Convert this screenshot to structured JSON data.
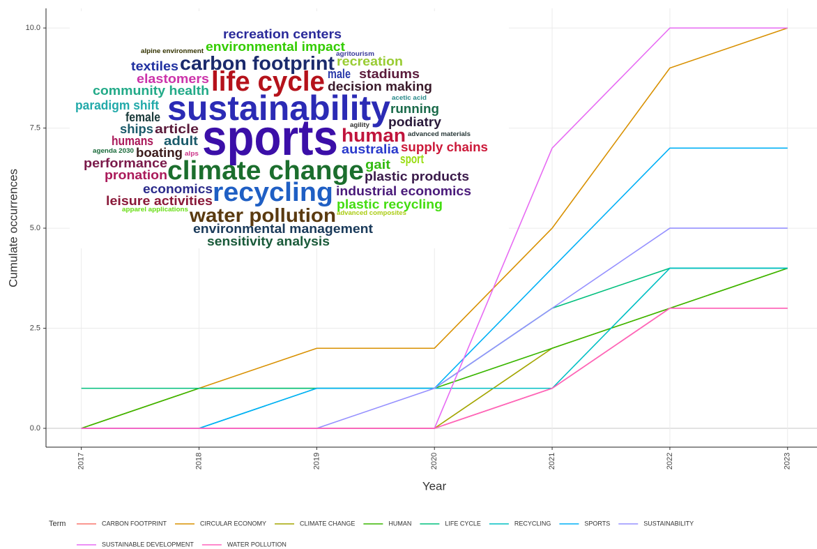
{
  "chart_data": {
    "type": "line",
    "y_label": "Cumulate occurrences",
    "x_label": "Year",
    "legend_title": "Term",
    "legend_position": "bottom",
    "grid": true,
    "x": [
      2017,
      2018,
      2019,
      2020,
      2021,
      2022,
      2023
    ],
    "xlim": [
      2016.7,
      2023.25
    ],
    "xticks": [
      2017,
      2018,
      2019,
      2020,
      2021,
      2022,
      2023
    ],
    "ylim": [
      -0.47,
      10.49
    ],
    "yticks": [
      {
        "value": 0,
        "label": "0.0"
      },
      {
        "value": 2.5,
        "label": "2.5"
      },
      {
        "value": 5,
        "label": "5.0"
      },
      {
        "value": 7.5,
        "label": "7.5"
      },
      {
        "value": 10,
        "label": "10.0"
      }
    ],
    "series": [
      {
        "name": "CARBON FOOTPRINT",
        "color": "#F8766D",
        "values": [
          0,
          0,
          0,
          0,
          1,
          3,
          3
        ]
      },
      {
        "name": "CIRCULAR ECONOMY",
        "color": "#D89000",
        "values": [
          0,
          1,
          2,
          2,
          5,
          9,
          10
        ]
      },
      {
        "name": "CLIMATE CHANGE",
        "color": "#A3A500",
        "values": [
          0,
          0,
          0,
          0,
          2,
          3,
          4
        ]
      },
      {
        "name": "HUMAN",
        "color": "#39B600",
        "values": [
          0,
          1,
          1,
          1,
          2,
          3,
          4
        ]
      },
      {
        "name": "LIFE CYCLE",
        "color": "#00BF7D",
        "values": [
          1,
          1,
          1,
          1,
          3,
          4,
          4
        ]
      },
      {
        "name": "RECYCLING",
        "color": "#00BFC4",
        "values": [
          0,
          0,
          1,
          1,
          1,
          4,
          4
        ]
      },
      {
        "name": "SPORTS",
        "color": "#00B0F6",
        "values": [
          0,
          0,
          1,
          1,
          4,
          7,
          7
        ]
      },
      {
        "name": "SUSTAINABILITY",
        "color": "#9590FF",
        "values": [
          0,
          0,
          0,
          1,
          3,
          5,
          5
        ]
      },
      {
        "name": "SUSTAINABLE DEVELOPMENT",
        "color": "#E76BF3",
        "values": [
          0,
          0,
          0,
          0,
          7,
          10,
          10
        ]
      },
      {
        "name": "WATER POLLUTION",
        "color": "#FF62BC",
        "values": [
          0,
          0,
          0,
          0,
          1,
          3,
          3
        ]
      }
    ],
    "word_cloud": [
      {
        "text": "sports",
        "color": "#3b0fa8"
      },
      {
        "text": "sustainability",
        "color": "#2b2bb5"
      },
      {
        "text": "climate change",
        "color": "#1b6e2d"
      },
      {
        "text": "recycling",
        "color": "#1f5fc4"
      },
      {
        "text": "life cycle",
        "color": "#b5121b"
      },
      {
        "text": "carbon footprint",
        "color": "#1a2a6c"
      },
      {
        "text": "water pollution",
        "color": "#5a3a10"
      },
      {
        "text": "human",
        "color": "#c0143c"
      },
      {
        "text": "recreation centers",
        "color": "#2a2a9a"
      },
      {
        "text": "environmental impact",
        "color": "#33cc00"
      },
      {
        "text": "textiles",
        "color": "#2030a0"
      },
      {
        "text": "elastomers",
        "color": "#cc33aa"
      },
      {
        "text": "community health",
        "color": "#22aa88"
      },
      {
        "text": "paradigm shift",
        "color": "#22aaaa"
      },
      {
        "text": "female",
        "color": "#1a3a3a"
      },
      {
        "text": "ships",
        "color": "#1a5a6a"
      },
      {
        "text": "article",
        "color": "#5a1a3a"
      },
      {
        "text": "humans",
        "color": "#aa1a5a"
      },
      {
        "text": "adult",
        "color": "#1a5a6a"
      },
      {
        "text": "boating",
        "color": "#3a1a1a"
      },
      {
        "text": "performance",
        "color": "#7a1a4a"
      },
      {
        "text": "pronation",
        "color": "#aa1a5a"
      },
      {
        "text": "economics",
        "color": "#2a2a8a"
      },
      {
        "text": "leisure activities",
        "color": "#8a1a3a"
      },
      {
        "text": "environmental management",
        "color": "#1a3a5a"
      },
      {
        "text": "sensitivity analysis",
        "color": "#1a5a3a"
      },
      {
        "text": "male",
        "color": "#2a3aaa"
      },
      {
        "text": "stadiums",
        "color": "#5a1a3a"
      },
      {
        "text": "decision making",
        "color": "#3a1a2a"
      },
      {
        "text": "recreation",
        "color": "#99cc33"
      },
      {
        "text": "running",
        "color": "#1a6a4a"
      },
      {
        "text": "podiatry",
        "color": "#2a1a3a"
      },
      {
        "text": "australia",
        "color": "#2a3acc"
      },
      {
        "text": "supply chains",
        "color": "#cc1a3a"
      },
      {
        "text": "sport",
        "color": "#99dd11"
      },
      {
        "text": "gait",
        "color": "#33bb11"
      },
      {
        "text": "plastic products",
        "color": "#3a1a4a"
      },
      {
        "text": "industrial economics",
        "color": "#4a1a7a"
      },
      {
        "text": "plastic recycling",
        "color": "#44dd11"
      },
      {
        "text": "alpine environment",
        "color": "#333300"
      },
      {
        "text": "agritourism",
        "color": "#3a3a9a"
      },
      {
        "text": "acetic acid",
        "color": "#2a8a8a"
      },
      {
        "text": "agility",
        "color": "#333333"
      },
      {
        "text": "advanced materials",
        "color": "#2a3a3a"
      },
      {
        "text": "agenda 2030",
        "color": "#1a6a3a"
      },
      {
        "text": "alps",
        "color": "#cc3388"
      },
      {
        "text": "apparel applications",
        "color": "#66dd11"
      },
      {
        "text": "advanced composites",
        "color": "#aacc11"
      }
    ]
  }
}
